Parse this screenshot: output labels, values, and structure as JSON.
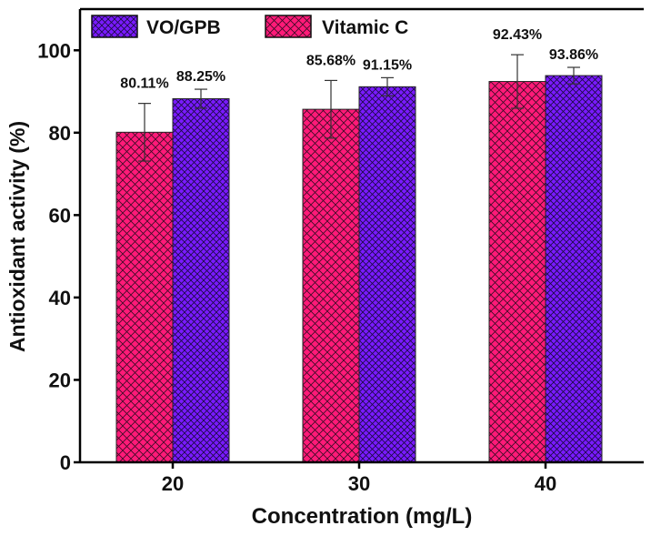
{
  "chart_data": {
    "type": "bar",
    "title": "",
    "xlabel": "Concentration (mg/L)",
    "ylabel": "Antioxidant activity (%)",
    "categories": [
      "20",
      "30",
      "40"
    ],
    "ylim": [
      0,
      110
    ],
    "yticks": [
      "0",
      "20",
      "40",
      "60",
      "80",
      "100"
    ],
    "legend_placement": "top-left",
    "grid": false,
    "series": [
      {
        "name": "Vitamic C",
        "color": "#ff1a78",
        "values": [
          80.11,
          85.68,
          92.43
        ],
        "errors": [
          7.0,
          7.0,
          6.5
        ],
        "labels": [
          "80.11%",
          "85.68%",
          "92.43%"
        ]
      },
      {
        "name": "VO/GPB",
        "color": "#7a1aff",
        "values": [
          88.25,
          91.15,
          93.86
        ],
        "errors": [
          2.3,
          2.2,
          2.0
        ],
        "labels": [
          "88.25%",
          "91.15%",
          "93.86%"
        ]
      }
    ],
    "legend_order": [
      "VO/GPB",
      "Vitamic C"
    ]
  }
}
